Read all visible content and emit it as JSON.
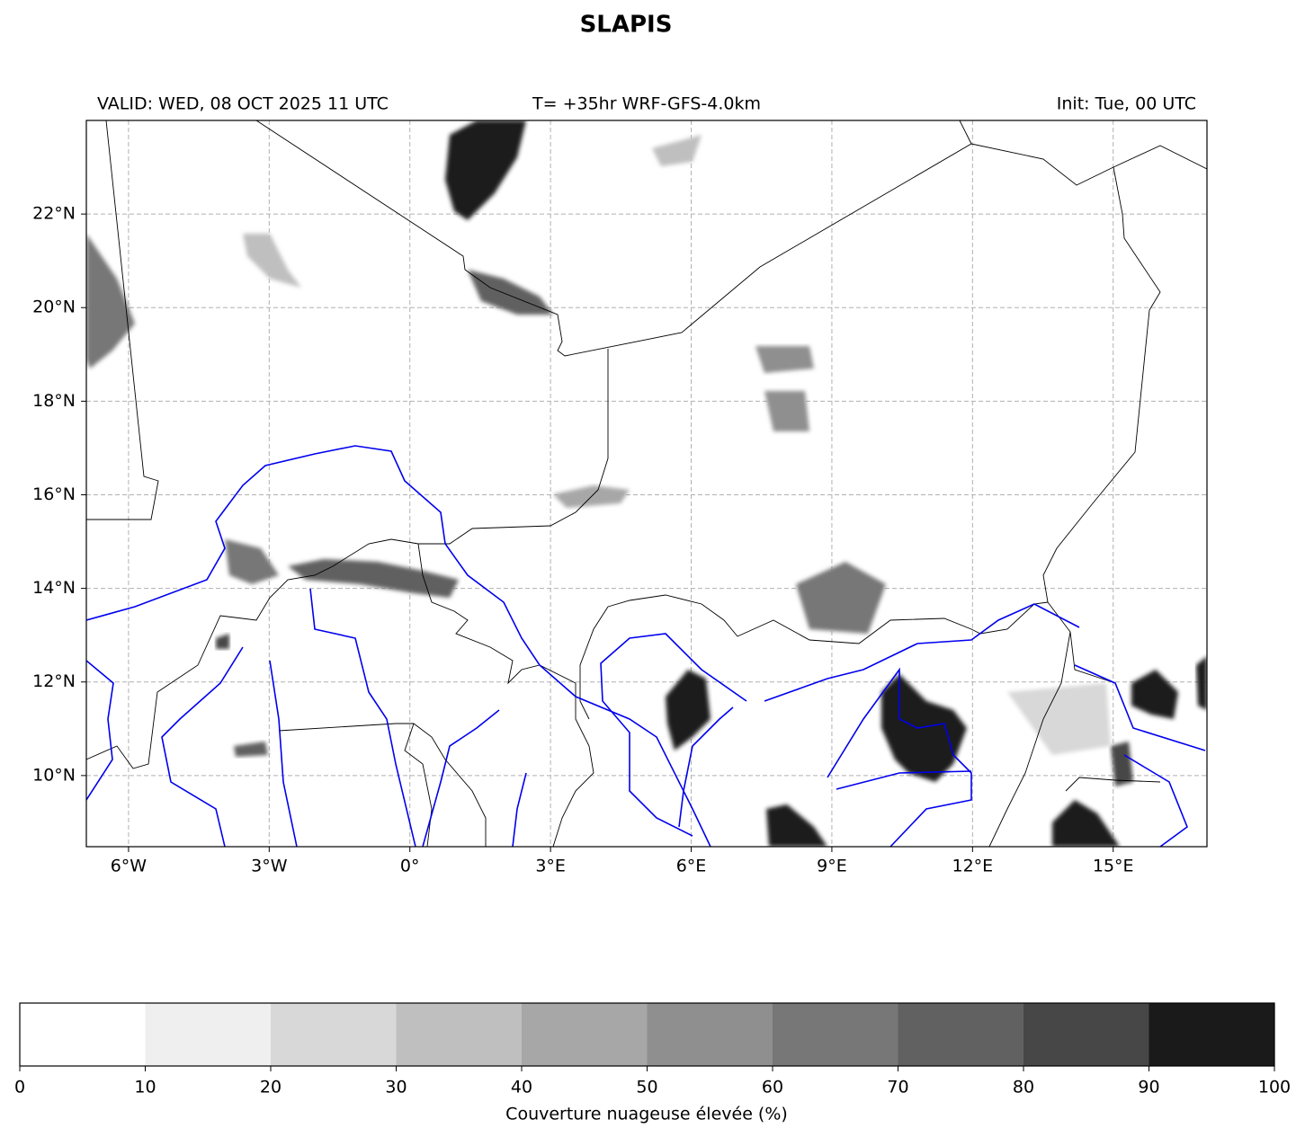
{
  "chart_data": {
    "type": "map",
    "title": "SLAPIS",
    "valid": "VALID: WED, 08 OCT 2025 11 UTC",
    "run": "T= +35hr WRF-GFS-4.0km",
    "init": "Init: Tue, 00 UTC",
    "xlim": [
      -6.9,
      17.0
    ],
    "ylim": [
      8.48,
      24.0
    ],
    "xticks": [
      {
        "value": -6,
        "label": "6°W"
      },
      {
        "value": -3,
        "label": "3°W"
      },
      {
        "value": 0,
        "label": "0°"
      },
      {
        "value": 3,
        "label": "3°E"
      },
      {
        "value": 6,
        "label": "6°E"
      },
      {
        "value": 9,
        "label": "9°E"
      },
      {
        "value": 12,
        "label": "12°E"
      },
      {
        "value": 15,
        "label": "15°E"
      }
    ],
    "yticks": [
      {
        "value": 10,
        "label": "10°N"
      },
      {
        "value": 12,
        "label": "12°N"
      },
      {
        "value": 14,
        "label": "14°N"
      },
      {
        "value": 16,
        "label": "16°N"
      },
      {
        "value": 18,
        "label": "18°N"
      },
      {
        "value": 20,
        "label": "20°N"
      },
      {
        "value": 22,
        "label": "22°N"
      }
    ],
    "grid": true,
    "colorbar": {
      "label": "Couverture nuageuse élevée (%)",
      "ticks": [
        0,
        10,
        20,
        30,
        40,
        50,
        60,
        70,
        80,
        90,
        100
      ],
      "colors": [
        "#ffffff",
        "#efefef",
        "#d8d8d8",
        "#bfbfbf",
        "#a7a7a7",
        "#8f8f8f",
        "#777777",
        "#616161",
        "#474747",
        "#1a1a1a"
      ]
    }
  }
}
